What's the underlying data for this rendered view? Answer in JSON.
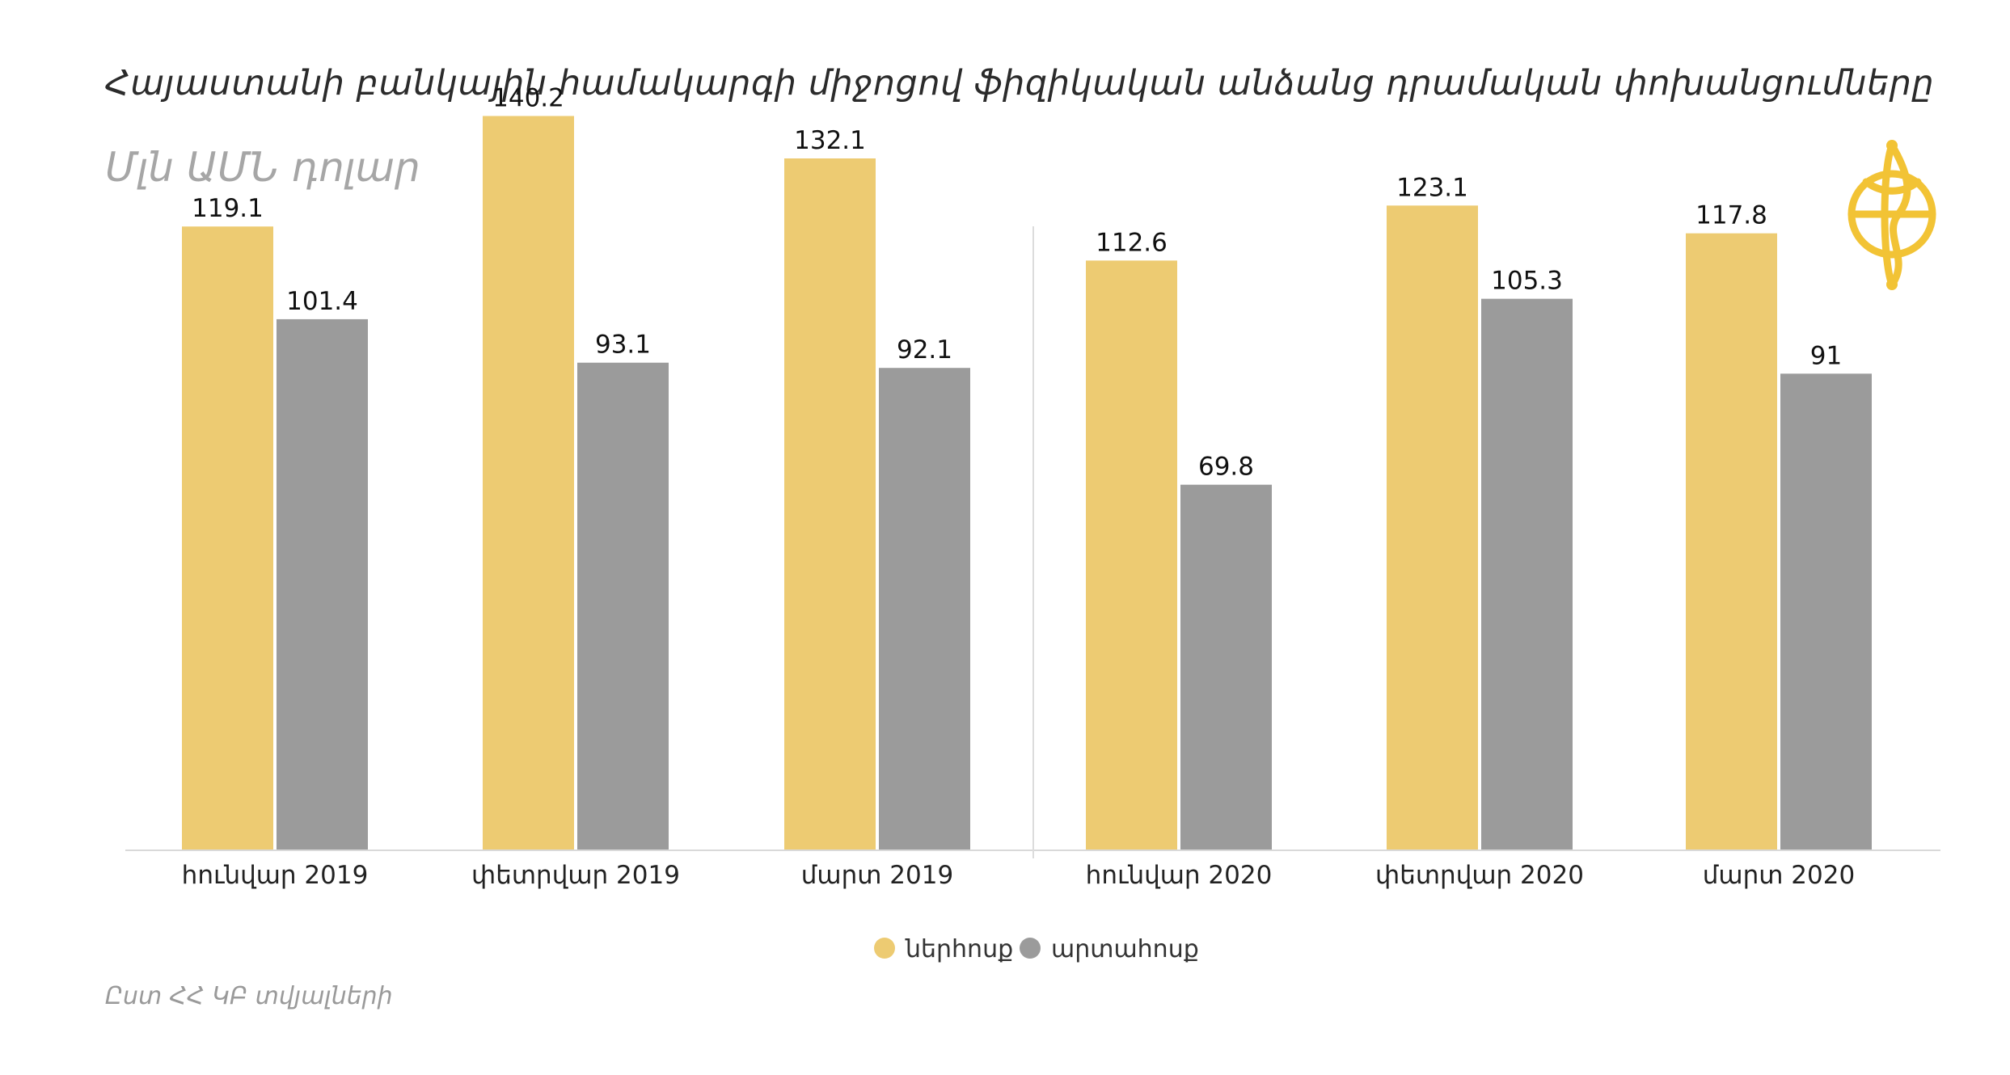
{
  "title": "Հայաստանի բանկային համակարգի միջոցով ֆիզիկական անձանց դրամական փոխանցումները",
  "subtitle": "Մլն ԱՄՆ դոլար",
  "source": "Ըստ ՀՀ ԿԲ տվյալների",
  "colors": {
    "inflow": "#EDCB72",
    "outflow": "#9B9B9B",
    "axis": "#d9d9d9",
    "divider": "#dcdcdc",
    "logo": "#F2C335"
  },
  "chart_data": {
    "type": "bar",
    "title": "Հայաստանի բանկային համակարգի միջոցով ֆիզիկական անձանց դրամական փոխանցումները",
    "ylabel": "Մլն ԱՄՆ դոլար",
    "categories": [
      "հունվար 2019",
      "փետրվար 2019",
      "մարտ 2019",
      "հունվար 2020",
      "փետրվար 2020",
      "մարտ 2020"
    ],
    "series": [
      {
        "name": "ներհոսք",
        "values": [
          119.1,
          140.2,
          132.1,
          112.6,
          123.1,
          117.8
        ]
      },
      {
        "name": "արտահոսք",
        "values": [
          101.4,
          93.1,
          92.1,
          69.8,
          105.3,
          91
        ]
      }
    ],
    "value_labels": [
      [
        "119.1",
        "140.2",
        "132.1",
        "112.6",
        "123.1",
        "117.8"
      ],
      [
        "101.4",
        "93.1",
        "92.1",
        "69.8",
        "105.3",
        "91"
      ]
    ],
    "ylim": [
      0,
      150
    ],
    "grid": false,
    "legend": "bottom-center"
  }
}
